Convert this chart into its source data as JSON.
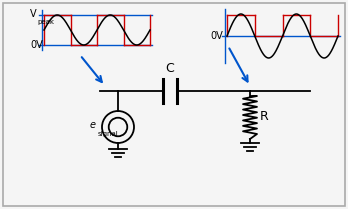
{
  "bg_color": "#f5f5f5",
  "border_color": "#aaaaaa",
  "line_color": "black",
  "blue_color": "#0055cc",
  "red_color": "#cc0000",
  "label_C": "C",
  "label_R": "R",
  "label_esignal": "e",
  "label_esignal_sub": "signal",
  "label_vpeak": "V",
  "label_vpeak_sub": "peak",
  "label_0v_left": "0V",
  "label_0v_right": "0V",
  "fig_width": 3.48,
  "fig_height": 2.09,
  "dpi": 100
}
